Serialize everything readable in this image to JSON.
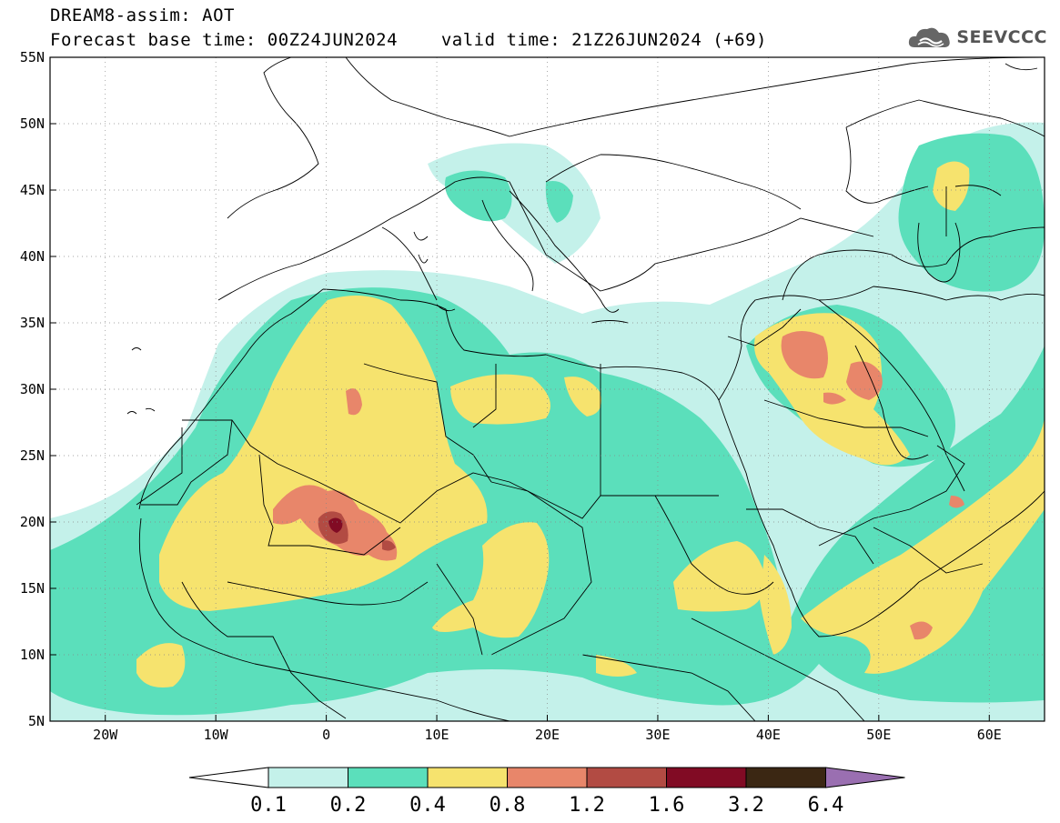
{
  "header": {
    "title_line1": "DREAM8-assim: AOT",
    "base_time_label": "Forecast base time: 00Z24JUN2024",
    "valid_time_label": "valid time: 21Z26JUN2024 (+69)",
    "logo_text": "SEEVCCC",
    "logo_icon": "cloud-icon"
  },
  "map": {
    "projection": "lat-lon",
    "lon_range": [
      -25,
      65
    ],
    "lat_range": [
      5,
      55
    ],
    "lon_ticks": [
      {
        "value": -20,
        "label": "20W"
      },
      {
        "value": -10,
        "label": "10W"
      },
      {
        "value": 0,
        "label": "0"
      },
      {
        "value": 10,
        "label": "10E"
      },
      {
        "value": 20,
        "label": "20E"
      },
      {
        "value": 30,
        "label": "30E"
      },
      {
        "value": 40,
        "label": "40E"
      },
      {
        "value": 50,
        "label": "50E"
      },
      {
        "value": 60,
        "label": "60E"
      }
    ],
    "lat_ticks": [
      {
        "value": 55,
        "label": "55N"
      },
      {
        "value": 50,
        "label": "50N"
      },
      {
        "value": 45,
        "label": "45N"
      },
      {
        "value": 40,
        "label": "40N"
      },
      {
        "value": 35,
        "label": "35N"
      },
      {
        "value": 30,
        "label": "30N"
      },
      {
        "value": 25,
        "label": "25N"
      },
      {
        "value": 20,
        "label": "20N"
      },
      {
        "value": 15,
        "label": "15N"
      },
      {
        "value": 10,
        "label": "10N"
      },
      {
        "value": 5,
        "label": "5N"
      }
    ],
    "grid": "dotted",
    "background": "#ffffff"
  },
  "colorbar": {
    "labels": [
      "0.1",
      "0.2",
      "0.4",
      "0.8",
      "1.2",
      "1.6",
      "3.2",
      "6.4"
    ],
    "colors": [
      "#c4f1ea",
      "#5bdfbb",
      "#f6e36e",
      "#e8866a",
      "#b24b43",
      "#810b24",
      "#3b2713"
    ],
    "under_color": "#ffffff",
    "over_color": "#9a6fb1"
  }
}
